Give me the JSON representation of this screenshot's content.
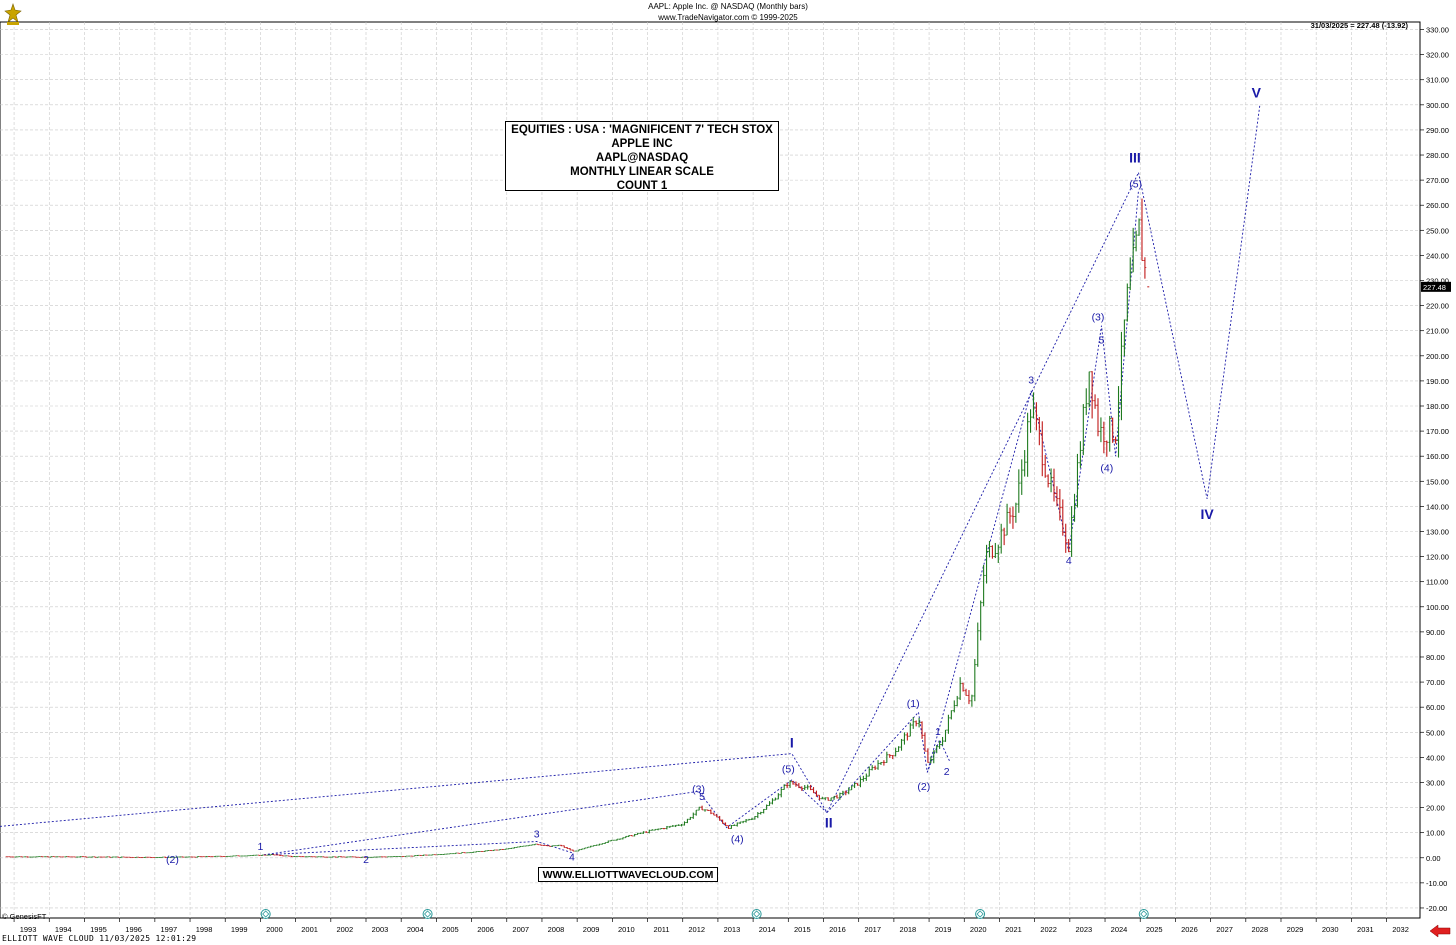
{
  "header": {
    "line1": "AAPL:  Apple Inc. @ NASDAQ  (Monthly bars)",
    "line2": "www.TradeNavigator.com © 1999-2025",
    "last_value": "31/03/2025 = 227.48 (-13.92)"
  },
  "info_box": [
    "EQUITIES : USA : 'MAGNIFICENT 7' TECH STOX",
    "APPLE INC",
    "AAPL@NASDAQ",
    "MONTHLY LINEAR SCALE",
    "COUNT 1"
  ],
  "website": "WWW.ELLIOTTWAVECLOUD.COM",
  "copyright": "© GenesisFT",
  "footer": "ELLIOTT WAVE CLOUD   11/03/2025 12:01:29",
  "colors": {
    "up_bar": "#1f7a1f",
    "down_bar": "#c01818",
    "label": "#1a1aa8",
    "grid": "#c8c8c8"
  },
  "chart_data": {
    "type": "line",
    "title": "AAPL:  Apple Inc. @ NASDAQ  (Monthly bars)",
    "xlabel": "",
    "ylabel": "",
    "x_ticks": [
      "1993",
      "1994",
      "1995",
      "1996",
      "1997",
      "1998",
      "1999",
      "2000",
      "2001",
      "2002",
      "2003",
      "2004",
      "2005",
      "2006",
      "2007",
      "2008",
      "2009",
      "2010",
      "2011",
      "2012",
      "2013",
      "2014",
      "2015",
      "2016",
      "2017",
      "2018",
      "2019",
      "2020",
      "2021",
      "2022",
      "2023",
      "2024",
      "2025",
      "2026",
      "2027",
      "2028",
      "2029",
      "2030",
      "2031",
      "2032"
    ],
    "y_ticks": [
      "-20.00",
      "-10.00",
      "0.00",
      "10.00",
      "20.00",
      "30.00",
      "40.00",
      "50.00",
      "60.00",
      "70.00",
      "80.00",
      "90.00",
      "100.00",
      "110.00",
      "120.00",
      "130.00",
      "140.00",
      "150.00",
      "160.00",
      "170.00",
      "180.00",
      "190.00",
      "200.00",
      "210.00",
      "220.00",
      "230.00",
      "240.00",
      "250.00",
      "260.00",
      "270.00",
      "280.00",
      "290.00",
      "300.00",
      "310.00",
      "320.00",
      "330.00"
    ],
    "ylim": [
      -24,
      333
    ],
    "xlim": [
      1992.6,
      2032.95
    ],
    "grid": true,
    "last_price_label": "227.48",
    "series": [
      {
        "type": "price",
        "points": [
          [
            1992.8,
            0.4
          ],
          [
            1995.0,
            0.35
          ],
          [
            1997.0,
            0.15
          ],
          [
            1998.0,
            0.3
          ],
          [
            1999.0,
            0.6
          ],
          [
            2000.0,
            1.0
          ],
          [
            2000.3,
            1.2
          ],
          [
            2000.9,
            0.5
          ],
          [
            2001.5,
            0.4
          ],
          [
            2002.0,
            0.35
          ],
          [
            2003.0,
            0.25
          ],
          [
            2004.0,
            0.5
          ],
          [
            2005.0,
            1.3
          ],
          [
            2006.0,
            2.2
          ],
          [
            2007.0,
            3.5
          ],
          [
            2007.8,
            5.5
          ],
          [
            2008.2,
            4.5
          ],
          [
            2008.5,
            5.0
          ],
          [
            2008.9,
            2.5
          ],
          [
            2009.5,
            5.0
          ],
          [
            2010.0,
            7.0
          ],
          [
            2011.0,
            10.5
          ],
          [
            2012.0,
            13.5
          ],
          [
            2012.5,
            20.0
          ],
          [
            2012.8,
            18.0
          ],
          [
            2013.3,
            12.0
          ],
          [
            2014.0,
            16.0
          ],
          [
            2014.5,
            22.0
          ],
          [
            2015.0,
            30.0
          ],
          [
            2015.5,
            28.0
          ],
          [
            2016.0,
            23.0
          ],
          [
            2016.5,
            25.0
          ],
          [
            2017.0,
            30.0
          ],
          [
            2017.5,
            37.0
          ],
          [
            2018.0,
            42.0
          ],
          [
            2018.7,
            56.0
          ],
          [
            2018.95,
            37.0
          ],
          [
            2019.4,
            48.0
          ],
          [
            2019.9,
            70.0
          ],
          [
            2020.2,
            62.0
          ],
          [
            2020.6,
            120.0
          ],
          [
            2020.9,
            125.0
          ],
          [
            2021.5,
            142.0
          ],
          [
            2021.9,
            180.0
          ],
          [
            2022.5,
            145.0
          ],
          [
            2022.97,
            125.0
          ],
          [
            2023.55,
            195.0
          ],
          [
            2023.83,
            170.0
          ],
          [
            2024.3,
            170.0
          ],
          [
            2024.6,
            220.0
          ],
          [
            2024.97,
            250.0
          ],
          [
            2025.2,
            227.48
          ]
        ]
      },
      {
        "type": "wave-projection",
        "points": [
          [
            2024.95,
            273
          ],
          [
            2026.9,
            143
          ],
          [
            2028.4,
            300
          ]
        ]
      }
    ],
    "wave_lines": [
      [
        [
          1992.6,
          12.5
        ],
        [
          2015.1,
          41.5
        ],
        [
          2016.1,
          18.0
        ],
        [
          2024.95,
          273
        ]
      ],
      [
        [
          2000.1,
          1.2
        ],
        [
          2012.45,
          26.5
        ],
        [
          2013.25,
          12.0
        ],
        [
          2015.1,
          31.0
        ],
        [
          2016.1,
          18.0
        ]
      ],
      [
        [
          2000.1,
          1.2
        ],
        [
          2007.85,
          6.5
        ],
        [
          2008.85,
          2.0
        ]
      ],
      [
        [
          2016.1,
          18.0
        ],
        [
          2018.7,
          58.0
        ],
        [
          2018.95,
          34.0
        ],
        [
          2021.9,
          186.0
        ],
        [
          2022.97,
          122.0
        ],
        [
          2023.9,
          212.0
        ],
        [
          2024.3,
          160.0
        ],
        [
          2024.95,
          266.0
        ]
      ],
      [
        [
          2018.95,
          34.0
        ],
        [
          2019.3,
          47.0
        ],
        [
          2019.6,
          38.0
        ]
      ]
    ],
    "wave_labels": [
      {
        "text": "I",
        "x": 2015.1,
        "y": 44
      },
      {
        "text": "II",
        "x": 2016.15,
        "y": 12
      },
      {
        "text": "III",
        "x": 2024.85,
        "y": 277
      },
      {
        "text": "IV",
        "x": 2026.9,
        "y": 135
      },
      {
        "text": "V",
        "x": 2028.3,
        "y": 303
      },
      {
        "text": "(1)",
        "x": 2018.55,
        "y": 60
      },
      {
        "text": "(2)",
        "x": 2018.85,
        "y": 27
      },
      {
        "text": "(3)",
        "x": 2012.45,
        "y": 26
      },
      {
        "text": "(4)",
        "x": 2013.55,
        "y": 6
      },
      {
        "text": "(5)",
        "x": 2015.0,
        "y": 34
      },
      {
        "text": "(2)",
        "x": 1997.5,
        "y": -2
      },
      {
        "text": "(3)",
        "x": 2023.8,
        "y": 214
      },
      {
        "text": "(4)",
        "x": 2024.05,
        "y": 154
      },
      {
        "text": "(5)",
        "x": 2024.87,
        "y": 267
      },
      {
        "text": "1",
        "x": 2000.0,
        "y": 3
      },
      {
        "text": "2",
        "x": 2003.0,
        "y": -2
      },
      {
        "text": "3",
        "x": 2007.85,
        "y": 8
      },
      {
        "text": "4",
        "x": 2008.85,
        "y": -1
      },
      {
        "text": "5",
        "x": 2012.55,
        "y": 23
      },
      {
        "text": "1",
        "x": 2019.25,
        "y": 49
      },
      {
        "text": "2",
        "x": 2019.5,
        "y": 33
      },
      {
        "text": "3",
        "x": 2021.9,
        "y": 189
      },
      {
        "text": "4",
        "x": 2022.97,
        "y": 117
      },
      {
        "text": "5",
        "x": 2023.9,
        "y": 205
      }
    ],
    "cycle_markers": [
      2000.15,
      2004.75,
      2014.1,
      2020.45,
      2025.1
    ]
  }
}
